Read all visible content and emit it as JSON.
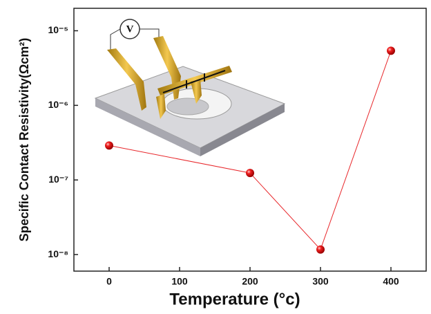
{
  "chart_data": {
    "type": "line",
    "xlabel": "Temperature (°c)",
    "ylabel": "Specific Contact Resistivity(Ωcm²)",
    "inset_label": "V",
    "x": [
      0,
      200,
      300,
      400
    ],
    "series": [
      {
        "color": "#e8262a",
        "values": [
          2.9e-07,
          1.24e-07,
          1.17e-08,
          5.4e-06
        ]
      }
    ],
    "xlim": [
      -50,
      450
    ],
    "xticks": [
      0,
      100,
      200,
      300,
      400
    ],
    "ylim": [
      6e-09,
      2e-05
    ],
    "yticks": [
      {
        "value": 1e-08,
        "label": "10⁻⁸"
      },
      {
        "value": 1e-07,
        "label": "10⁻⁷"
      },
      {
        "value": 1e-06,
        "label": "10⁻⁶"
      },
      {
        "value": 1e-05,
        "label": "10⁻⁵"
      }
    ],
    "yscale": "log"
  }
}
